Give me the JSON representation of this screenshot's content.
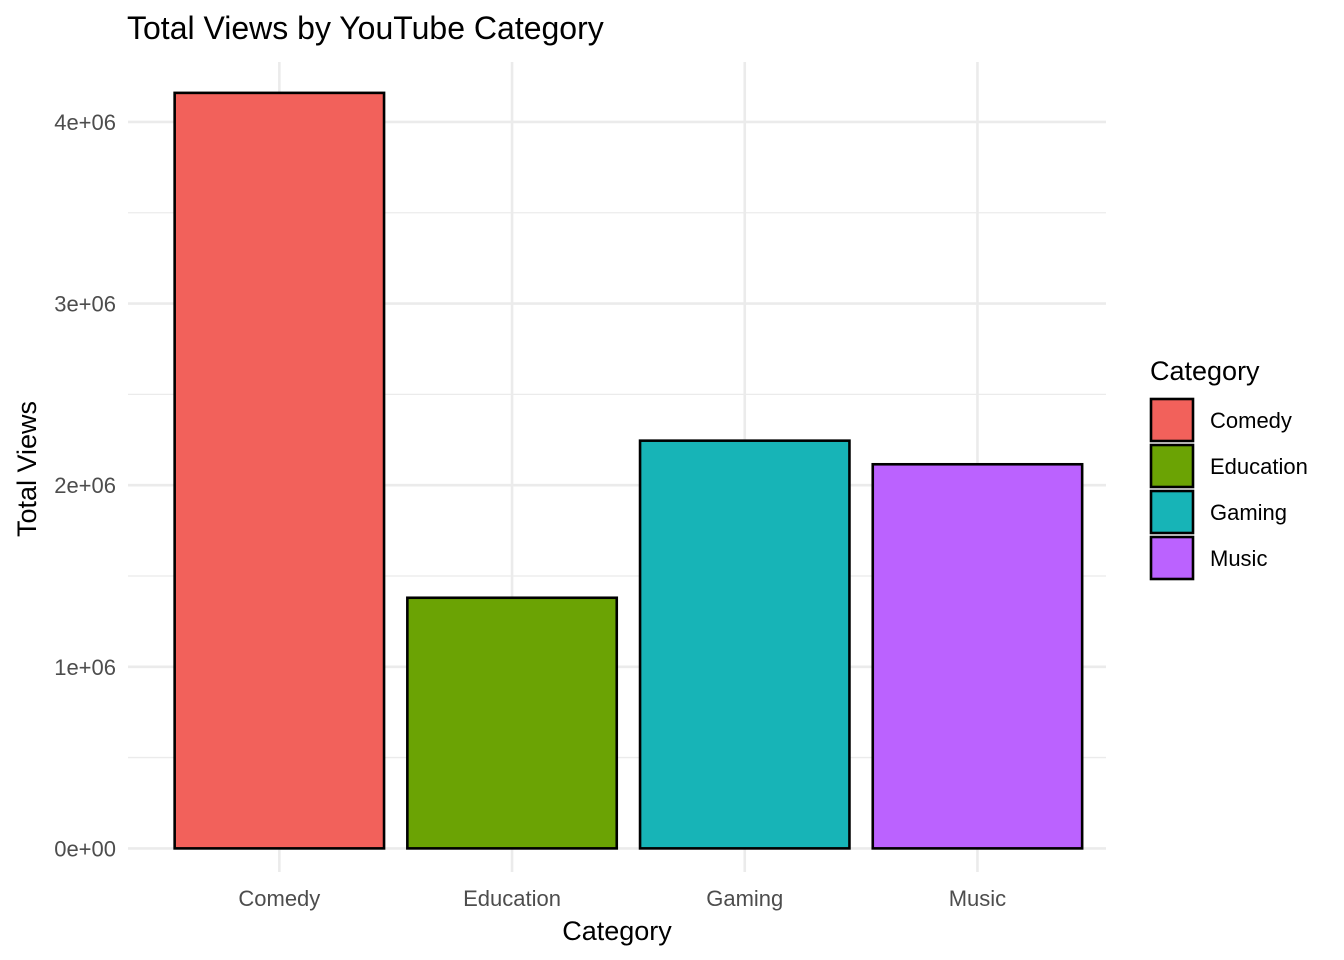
{
  "chart_data": {
    "type": "bar",
    "title": "Total Views by YouTube Category",
    "xlabel": "Category",
    "ylabel": "Total Views",
    "categories": [
      "Comedy",
      "Education",
      "Gaming",
      "Music"
    ],
    "values": [
      4160000,
      1380000,
      2245000,
      2115000
    ],
    "colors": [
      "#F8766D",
      "#7CAE00",
      "#00BFC4",
      "#C77CFF"
    ],
    "bar_fill_colors": [
      "#F2615B",
      "#6BA304",
      "#17B4B7",
      "#BB62FF"
    ],
    "ylim": [
      -130000,
      4330000
    ],
    "y_ticks": [
      0,
      1000000,
      2000000,
      3000000,
      4000000
    ],
    "y_tick_labels": [
      "0e+00",
      "1e+06",
      "2e+06",
      "3e+06",
      "4e+06"
    ],
    "grid": true,
    "legend": {
      "title": "Category",
      "placement": "right",
      "entries": [
        "Comedy",
        "Education",
        "Gaming",
        "Music"
      ]
    }
  }
}
